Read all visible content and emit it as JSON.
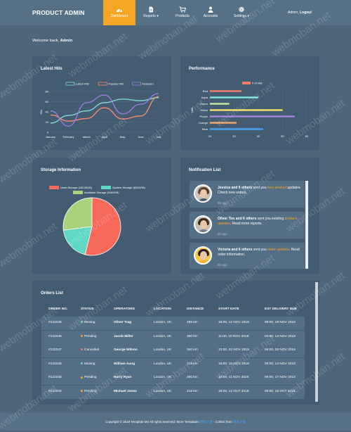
{
  "brand": "PRODUCT ADMIN",
  "nav": [
    {
      "label": "Dashboard"
    },
    {
      "label": "Reports ▾"
    },
    {
      "label": "Products"
    },
    {
      "label": "Accounts"
    },
    {
      "label": "Settings ▾"
    }
  ],
  "user": {
    "name": "Admin",
    "separator": ",",
    "logout": "Logout"
  },
  "welcome": {
    "prefix": "Welcome back, ",
    "name": "Admin"
  },
  "colors": {
    "accent": "#f5a623",
    "panel": "#435c71",
    "background": "#4e657a"
  },
  "latest_hits": {
    "title": "Latest Hits",
    "chart_data": {
      "type": "line",
      "categories": [
        "January",
        "February",
        "March",
        "April",
        "May",
        "June",
        "July"
      ],
      "series": [
        {
          "name": "Latest Hits",
          "color": "#80dfd4",
          "values": [
            18,
            33,
            42,
            58,
            65,
            62,
            68
          ]
        },
        {
          "name": "Popular Hits",
          "color": "#f58d6d",
          "values": [
            34,
            22,
            27,
            48,
            26,
            32,
            70
          ]
        },
        {
          "name": "Featured",
          "color": "#a27de8",
          "values": [
            42,
            12,
            58,
            73,
            36,
            55,
            76
          ]
        }
      ],
      "ylabel": "Hits",
      "ylim": [
        0,
        80
      ],
      "yticks": [
        "0",
        "20",
        "40",
        "60",
        "80"
      ]
    }
  },
  "performance": {
    "title": "Performance",
    "chart_data": {
      "type": "bar",
      "orientation": "horizontal",
      "categories": [
        "Red",
        "Aqua",
        "Green",
        "Yellow",
        "Purple",
        "Orange",
        "Blue"
      ],
      "series": [
        {
          "name": "# of Hits",
          "values": [
            33,
            40,
            28,
            50,
            55,
            31,
            42
          ]
        }
      ],
      "colors": [
        "#f37f6a",
        "#7ee6d6",
        "#c6e6a4",
        "#f6e36a",
        "#a97de6",
        "#f5a66a",
        "#4aa3f0"
      ],
      "ylabel": "Hits",
      "xlim": [
        20,
        60
      ],
      "xticks": [
        "20",
        "30",
        "40",
        "50",
        "60"
      ],
      "legend": "top"
    }
  },
  "storage": {
    "title": "Storage Information",
    "chart_data": {
      "type": "pie",
      "slices": [
        {
          "name": "Used Storage (18240GB)",
          "value": 18240,
          "color": "#f7695b"
        },
        {
          "name": "System Storage (6500GB)",
          "value": 6500,
          "color": "#5ed8c3"
        },
        {
          "name": "Available Storage (9150GB)",
          "value": 9150,
          "color": "#a8d27c"
        }
      ],
      "legend": "top"
    }
  },
  "notifications": {
    "title": "Notification List",
    "items": [
      {
        "name": "Jessica",
        "others": "and 6 others",
        "pre": " sent you ",
        "highlight": "new product",
        "post": "updates. Check new orders.",
        "time": "6h ago"
      },
      {
        "name": "Oliver Too",
        "others": "and 6 others",
        "pre": " sent you existing ",
        "highlight": "product updates",
        "post": ". Read more reports.",
        "time": "6h ago"
      },
      {
        "name": "Victoria",
        "others": "and 6 others",
        "pre": " sent you ",
        "highlight": "order updates",
        "post": ". Read order information.",
        "time": "6h ago"
      }
    ]
  },
  "orders": {
    "title": "Orders List",
    "headers": [
      "ORDER NO.",
      "STATUS",
      "OPERATORS",
      "LOCATION",
      "DISTANCE",
      "START DATE",
      "EST DELIVERY DUE"
    ],
    "rows": [
      {
        "no": "#122349",
        "status": "Moving",
        "status_color": "#5ed8c3",
        "operator": "Oliver Trag",
        "location": "London, UK",
        "distance": "485 km",
        "start": "16:00, 12 NOV 2018",
        "due": "08:00, 18 NOV 2018"
      },
      {
        "no": "#122348",
        "status": "Pending",
        "status_color": "#f5a623",
        "operator": "Jacob Miller",
        "location": "London, UK",
        "distance": "360 km",
        "start": "11:00, 10 NOV 2018",
        "due": "04:00, 14 NOV 2018"
      },
      {
        "no": "#122347",
        "status": "Cancelled",
        "status_color": "#f37f6a",
        "operator": "George Wilson",
        "location": "London, UK",
        "distance": "340 km",
        "start": "12:00, 22 NOV 2018",
        "due": "06:00, 28 NOV 2018"
      },
      {
        "no": "#122346",
        "status": "Moving",
        "status_color": "#5ed8c3",
        "operator": "William Aung",
        "location": "London, UK",
        "distance": "218 km",
        "start": "15:00, 10 NOV 2018",
        "due": "09:00, 14 NOV 2018"
      },
      {
        "no": "#122345",
        "status": "Pending",
        "status_color": "#f5a623",
        "operator": "Harry Ryan",
        "location": "London, UK",
        "distance": "280 km",
        "start": "15:00, 11 NOV 2018",
        "due": "09:00, 17 NOV 2018"
      },
      {
        "no": "#122344",
        "status": "Pending",
        "status_color": "#f5a623",
        "operator": "Michael Jones",
        "location": "London, UK",
        "distance": "218 km",
        "start": "18:00, 12 OCT 2018",
        "due": "06:00, 18 OCT 2018"
      }
    ]
  },
  "footer": {
    "prefix": "Copyright © 2018 Template Mo All rights reserved. More Templates ",
    "link1": "模板之家",
    "mid": " - Collect from ",
    "link2": "模板之家"
  },
  "watermark": "webmoban.net"
}
